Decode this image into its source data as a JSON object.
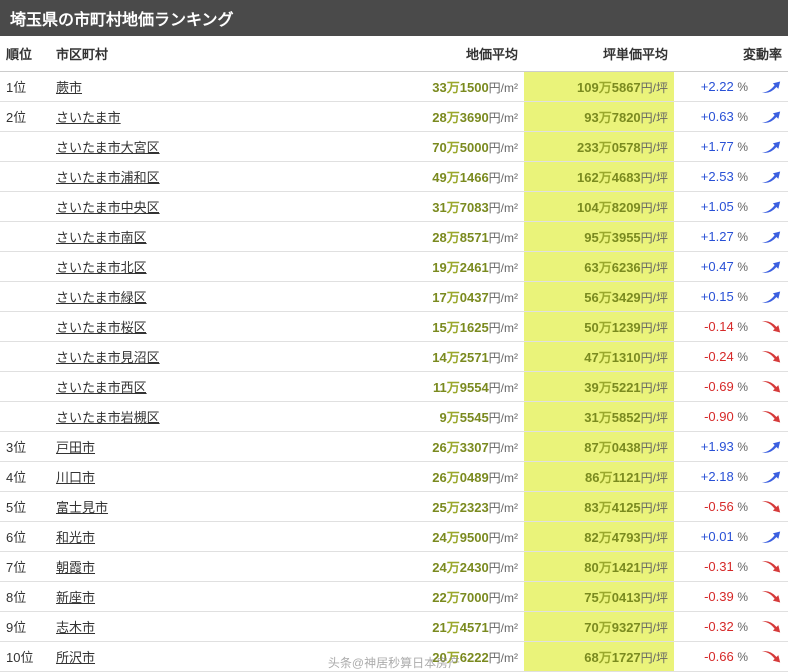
{
  "title": "埼玉県の市町村地価ランキング",
  "columns": {
    "rank": "順位",
    "city": "市区町村",
    "price": "地価平均",
    "tsubo": "坪単価平均",
    "change": "変動率"
  },
  "colors": {
    "header_bg": "#4a4a4a",
    "tsubo_bg": "#eaf37a",
    "olive": "#7a8a1f",
    "olive_light": "#9aa82c",
    "pos": "#2850d6",
    "neg": "#d62828",
    "arrow_up": "#3b5fe0",
    "arrow_down": "#d63a3a"
  },
  "units": {
    "man": "万",
    "price_suffix": "円/m²",
    "tsubo_suffix": "円/坪",
    "pct": "%"
  },
  "rows": [
    {
      "rank": "1位",
      "city": "蕨市",
      "p_man": "33",
      "p_rest": "1500",
      "t_man": "109",
      "t_rest": "5867",
      "chg": "+2.22",
      "dir": "up"
    },
    {
      "rank": "2位",
      "city": "さいたま市",
      "p_man": "28",
      "p_rest": "3690",
      "t_man": "93",
      "t_rest": "7820",
      "chg": "+0.63",
      "dir": "up"
    },
    {
      "rank": "",
      "city": "さいたま市大宮区",
      "p_man": "70",
      "p_rest": "5000",
      "t_man": "233",
      "t_rest": "0578",
      "chg": "+1.77",
      "dir": "up"
    },
    {
      "rank": "",
      "city": "さいたま市浦和区",
      "p_man": "49",
      "p_rest": "1466",
      "t_man": "162",
      "t_rest": "4683",
      "chg": "+2.53",
      "dir": "up"
    },
    {
      "rank": "",
      "city": "さいたま市中央区",
      "p_man": "31",
      "p_rest": "7083",
      "t_man": "104",
      "t_rest": "8209",
      "chg": "+1.05",
      "dir": "up"
    },
    {
      "rank": "",
      "city": "さいたま市南区",
      "p_man": "28",
      "p_rest": "8571",
      "t_man": "95",
      "t_rest": "3955",
      "chg": "+1.27",
      "dir": "up"
    },
    {
      "rank": "",
      "city": "さいたま市北区",
      "p_man": "19",
      "p_rest": "2461",
      "t_man": "63",
      "t_rest": "6236",
      "chg": "+0.47",
      "dir": "up"
    },
    {
      "rank": "",
      "city": "さいたま市緑区",
      "p_man": "17",
      "p_rest": "0437",
      "t_man": "56",
      "t_rest": "3429",
      "chg": "+0.15",
      "dir": "up"
    },
    {
      "rank": "",
      "city": "さいたま市桜区",
      "p_man": "15",
      "p_rest": "1625",
      "t_man": "50",
      "t_rest": "1239",
      "chg": "-0.14",
      "dir": "down"
    },
    {
      "rank": "",
      "city": "さいたま市見沼区",
      "p_man": "14",
      "p_rest": "2571",
      "t_man": "47",
      "t_rest": "1310",
      "chg": "-0.24",
      "dir": "down"
    },
    {
      "rank": "",
      "city": "さいたま市西区",
      "p_man": "11",
      "p_rest": "9554",
      "t_man": "39",
      "t_rest": "5221",
      "chg": "-0.69",
      "dir": "down"
    },
    {
      "rank": "",
      "city": "さいたま市岩槻区",
      "p_man": "9",
      "p_rest": "5545",
      "t_man": "31",
      "t_rest": "5852",
      "chg": "-0.90",
      "dir": "down"
    },
    {
      "rank": "3位",
      "city": "戸田市",
      "p_man": "26",
      "p_rest": "3307",
      "t_man": "87",
      "t_rest": "0438",
      "chg": "+1.93",
      "dir": "up"
    },
    {
      "rank": "4位",
      "city": "川口市",
      "p_man": "26",
      "p_rest": "0489",
      "t_man": "86",
      "t_rest": "1121",
      "chg": "+2.18",
      "dir": "up"
    },
    {
      "rank": "5位",
      "city": "富士見市",
      "p_man": "25",
      "p_rest": "2323",
      "t_man": "83",
      "t_rest": "4125",
      "chg": "-0.56",
      "dir": "down"
    },
    {
      "rank": "6位",
      "city": "和光市",
      "p_man": "24",
      "p_rest": "9500",
      "t_man": "82",
      "t_rest": "4793",
      "chg": "+0.01",
      "dir": "up"
    },
    {
      "rank": "7位",
      "city": "朝霞市",
      "p_man": "24",
      "p_rest": "2430",
      "t_man": "80",
      "t_rest": "1421",
      "chg": "-0.31",
      "dir": "down"
    },
    {
      "rank": "8位",
      "city": "新座市",
      "p_man": "22",
      "p_rest": "7000",
      "t_man": "75",
      "t_rest": "0413",
      "chg": "-0.39",
      "dir": "down"
    },
    {
      "rank": "9位",
      "city": "志木市",
      "p_man": "21",
      "p_rest": "4571",
      "t_man": "70",
      "t_rest": "9327",
      "chg": "-0.32",
      "dir": "down"
    },
    {
      "rank": "10位",
      "city": "所沢市",
      "p_man": "20",
      "p_rest": "6222",
      "t_man": "68",
      "t_rest": "1727",
      "chg": "-0.66",
      "dir": "down"
    }
  ],
  "watermark": "头条@神居秒算日本房产"
}
